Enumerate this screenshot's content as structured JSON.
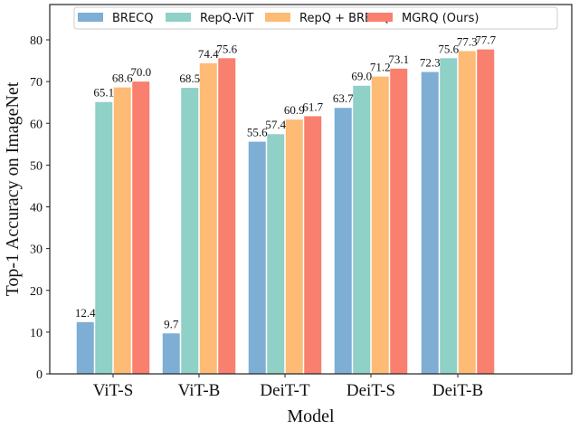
{
  "chart_data": {
    "type": "bar",
    "title": "",
    "xlabel": "Model",
    "ylabel": "Top-1 Accuracy on ImageNet",
    "ylim": [
      0,
      85
    ],
    "yticks": [
      0,
      10,
      20,
      30,
      40,
      50,
      60,
      70,
      80
    ],
    "grid": false,
    "legend": "top",
    "categories": [
      "ViT-S",
      "ViT-B",
      "DeiT-T",
      "DeiT-S",
      "DeiT-B"
    ],
    "series": [
      {
        "name": "BRECQ",
        "color": "#7eaed3",
        "values": [
          12.4,
          9.7,
          55.6,
          63.7,
          72.3
        ]
      },
      {
        "name": "RepQ-ViT",
        "color": "#8fd0c7",
        "values": [
          65.1,
          68.5,
          57.4,
          69.0,
          75.6
        ]
      },
      {
        "name": "RepQ + BRECQ",
        "color": "#fdbb76",
        "values": [
          68.6,
          74.4,
          60.9,
          71.2,
          77.3
        ]
      },
      {
        "name": "MGRQ (Ours)",
        "color": "#f97f6f",
        "values": [
          70.0,
          75.6,
          61.7,
          73.1,
          77.7
        ]
      }
    ]
  }
}
